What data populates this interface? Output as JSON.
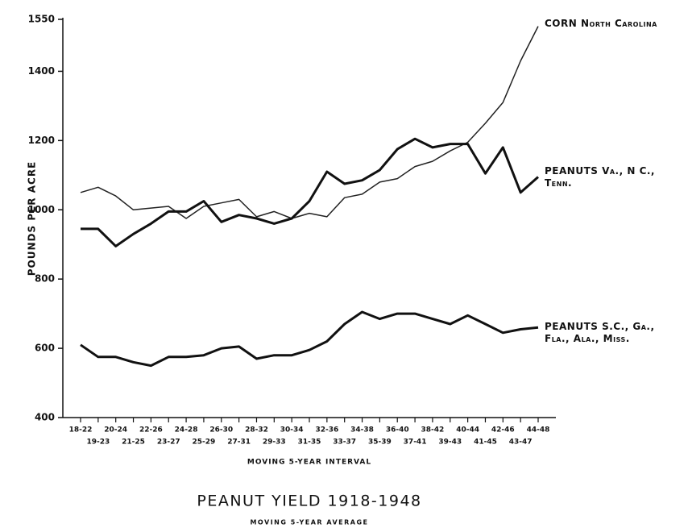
{
  "chart_data": {
    "type": "line",
    "title": "PEANUT YIELD 1918-1948",
    "subtitle": "MOVING 5-YEAR AVERAGE",
    "xlabel": "MOVING 5-YEAR INTERVAL",
    "ylabel": "POUNDS PER ACRE",
    "categories": [
      "18-22",
      "19-23",
      "20-24",
      "21-25",
      "22-26",
      "23-27",
      "24-28",
      "25-29",
      "26-30",
      "27-31",
      "28-32",
      "29-33",
      "30-34",
      "31-35",
      "32-36",
      "33-37",
      "34-38",
      "35-39",
      "36-40",
      "37-41",
      "38-42",
      "39-43",
      "40-44",
      "41-45",
      "42-46",
      "43-47",
      "44-48"
    ],
    "ylim": [
      400,
      1550
    ],
    "yticks": [
      400,
      600,
      800,
      1000,
      1200,
      1400,
      1550
    ],
    "series": [
      {
        "name": "CORN North Carolina",
        "color": "#222222",
        "width": 1.5,
        "values": [
          1050,
          1065,
          1040,
          1000,
          1005,
          1010,
          975,
          1010,
          1020,
          1030,
          980,
          995,
          975,
          990,
          980,
          1035,
          1045,
          1080,
          1090,
          1125,
          1140,
          1170,
          1195,
          1250,
          1310,
          1430,
          1530
        ]
      },
      {
        "name": "PEANUTS Va., N C., Tenn.",
        "color": "#111111",
        "width": 3,
        "values": [
          945,
          945,
          895,
          930,
          960,
          995,
          995,
          1025,
          965,
          985,
          975,
          960,
          975,
          1025,
          1110,
          1075,
          1085,
          1115,
          1175,
          1205,
          1180,
          1190,
          1190,
          1105,
          1180,
          1050,
          1095
        ]
      },
      {
        "name": "PEANUTS S.C., Ga., Fla., Ala., Miss.",
        "color": "#111111",
        "width": 3,
        "values": [
          610,
          575,
          575,
          560,
          550,
          575,
          575,
          580,
          600,
          605,
          570,
          580,
          580,
          595,
          620,
          670,
          705,
          685,
          700,
          700,
          685,
          670,
          695,
          670,
          645,
          655,
          660
        ]
      }
    ]
  }
}
